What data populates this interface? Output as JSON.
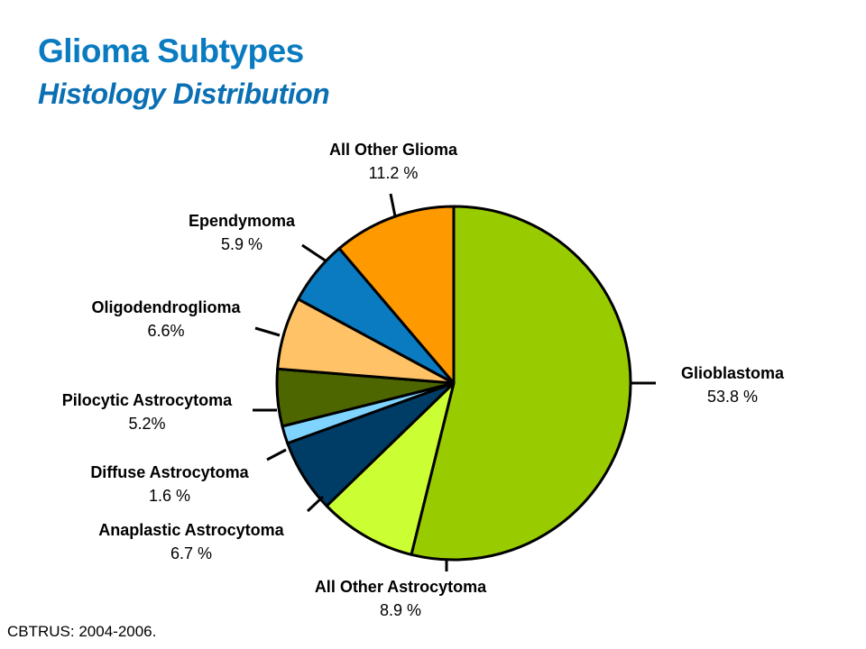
{
  "header": {
    "title": "Glioma Subtypes",
    "subtitle": "Histology Distribution"
  },
  "footer": {
    "source": "CBTRUS: 2004-2006."
  },
  "chart_data": {
    "type": "pie",
    "title": "Glioma Subtypes",
    "subtitle": "Histology Distribution",
    "slices": [
      {
        "label": "Glioblastoma",
        "value": 53.8,
        "value_text": "53.8 %",
        "color": "#99cc00"
      },
      {
        "label": "All Other Astrocytoma",
        "value": 8.9,
        "value_text": "8.9 %",
        "color": "#ccff33"
      },
      {
        "label": "Anaplastic Astrocytoma",
        "value": 6.7,
        "value_text": "6.7 %",
        "color": "#003d66"
      },
      {
        "label": "Diffuse Astrocytoma",
        "value": 1.6,
        "value_text": "1.6 %",
        "color": "#7fd4ff"
      },
      {
        "label": "Pilocytic Astrocytoma",
        "value": 5.2,
        "value_text": "5.2%",
        "color": "#4d6600"
      },
      {
        "label": "Oligodendroglioma",
        "value": 6.6,
        "value_text": "6.6%",
        "color": "#ffc266"
      },
      {
        "label": "Ependymoma",
        "value": 5.9,
        "value_text": "5.9 %",
        "color": "#0a7bc0"
      },
      {
        "label": "All Other Glioma",
        "value": 11.2,
        "value_text": "11.2 %",
        "color": "#ff9900"
      }
    ],
    "start_angle_deg": 0,
    "direction": "clockwise",
    "legend": "none"
  }
}
